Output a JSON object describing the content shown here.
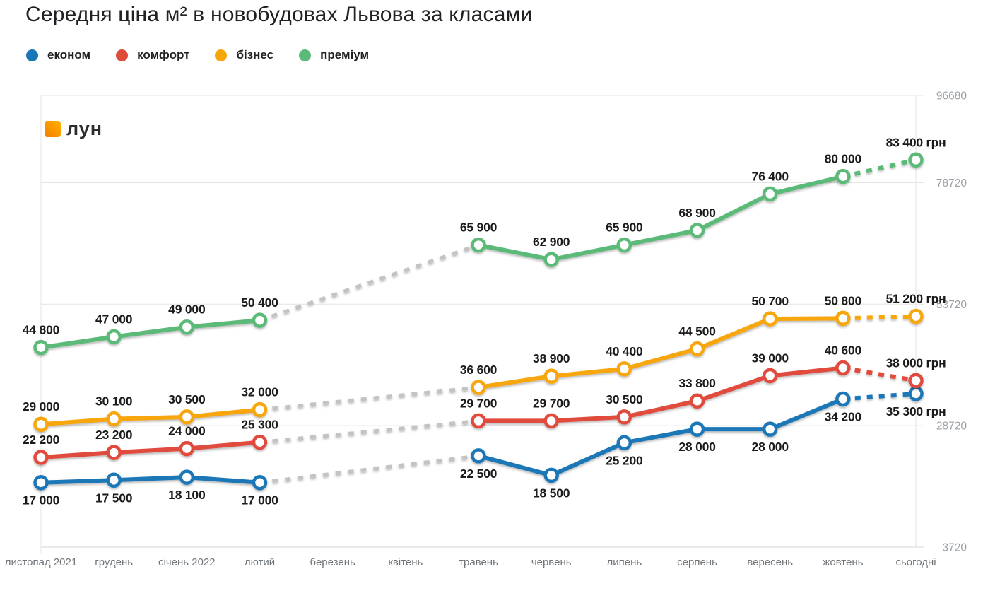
{
  "page": {
    "watermark": "лун"
  },
  "chart_data": {
    "type": "line",
    "title": "Середня ціна м² в новобудовах Львова за класами",
    "unit": "грн",
    "categories": [
      "листопад 2021",
      "грудень",
      "січень 2022",
      "лютий",
      "березень",
      "квітень",
      "травень",
      "червень",
      "липень",
      "серпень",
      "вересень",
      "жовтень",
      "сьогодні"
    ],
    "y_axis": {
      "ticks": [
        96680,
        78720,
        53720,
        28720,
        3720
      ],
      "min": 3720,
      "max": 96680,
      "grid": true
    },
    "legend_position": "top-left",
    "gap_connector_color": "#c3c3c3",
    "last_segment_dashed": true,
    "last_point_label_suffix": " грн",
    "series": [
      {
        "key": "econom",
        "name": "економ",
        "color": "#1a77b7",
        "label_side": "below",
        "values": [
          17000,
          17500,
          18100,
          17000,
          null,
          null,
          22500,
          18500,
          25200,
          28000,
          28000,
          34200,
          35300
        ]
      },
      {
        "key": "comfort",
        "name": "комфорт",
        "color": "#e04c3c",
        "label_side": "above",
        "values": [
          22200,
          23200,
          24000,
          25300,
          null,
          null,
          29700,
          29700,
          30500,
          33800,
          39000,
          40600,
          38000
        ]
      },
      {
        "key": "business",
        "name": "бізнес",
        "color": "#f7a60a",
        "label_side": "above",
        "values": [
          29000,
          30100,
          30500,
          32000,
          null,
          null,
          36600,
          38900,
          40400,
          44500,
          50700,
          50800,
          51200
        ]
      },
      {
        "key": "premium",
        "name": "преміум",
        "color": "#5cba79",
        "label_side": "above",
        "values": [
          44800,
          47000,
          49000,
          50400,
          null,
          null,
          65900,
          62900,
          65900,
          68900,
          76400,
          80000,
          83400
        ]
      }
    ]
  }
}
